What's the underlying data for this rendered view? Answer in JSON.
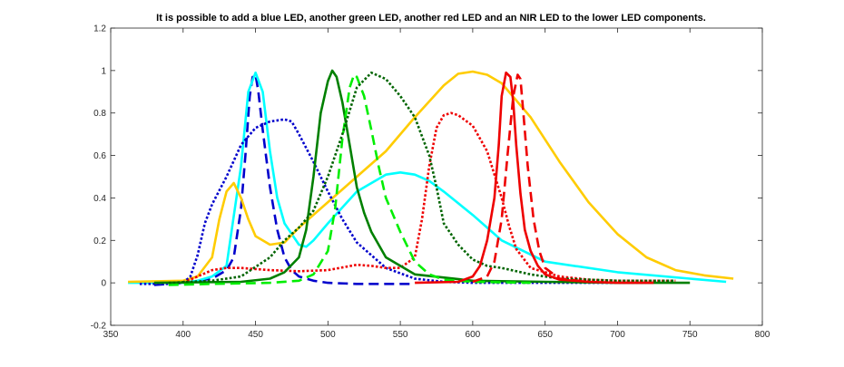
{
  "chart_data": {
    "type": "line",
    "title": "It is possible to add a blue LED, another green LED, another red LED and an NIR LED to the lower LED components.",
    "xlabel": "",
    "ylabel": "",
    "xlim": [
      350,
      800
    ],
    "ylim": [
      -0.2,
      1.2
    ],
    "xticks": [
      350,
      400,
      450,
      500,
      550,
      600,
      650,
      700,
      750,
      800
    ],
    "xtick_labels": [
      "350",
      "400",
      "450",
      "500",
      "550",
      "600",
      "650",
      "700",
      "750",
      "800"
    ],
    "yticks": [
      -0.2,
      0,
      0.2,
      0.4,
      0.6,
      0.8,
      1,
      1.2
    ],
    "ytick_labels": [
      "-0.2",
      "0",
      "0.2",
      "0.4",
      "0.6",
      "0.8",
      "1",
      "1.2"
    ],
    "grid": false,
    "legend": "none",
    "series": [
      {
        "color": "#0000cc",
        "style": "dashed",
        "x": [
          380,
          400,
          410,
          420,
          430,
          435,
          440,
          443,
          446,
          448,
          450,
          452,
          455,
          460,
          465,
          470,
          475,
          480,
          490,
          500,
          520,
          540,
          560
        ],
        "y": [
          -0.01,
          0,
          0.01,
          0.02,
          0.06,
          0.12,
          0.35,
          0.6,
          0.88,
          0.97,
          0.98,
          0.9,
          0.72,
          0.45,
          0.25,
          0.12,
          0.06,
          0.03,
          0.01,
          0,
          -0.005,
          -0.005,
          -0.005
        ]
      },
      {
        "color": "#00ffff",
        "style": "solid",
        "x": [
          362,
          400,
          410,
          420,
          430,
          440,
          445,
          450,
          455,
          460,
          465,
          470,
          480,
          485,
          490,
          500,
          520,
          540,
          550,
          560,
          570,
          580,
          600,
          620,
          650,
          700,
          750,
          775
        ],
        "y": [
          0,
          0,
          0.01,
          0.03,
          0.08,
          0.55,
          0.9,
          0.99,
          0.9,
          0.62,
          0.4,
          0.28,
          0.18,
          0.17,
          0.2,
          0.28,
          0.43,
          0.51,
          0.52,
          0.51,
          0.48,
          0.43,
          0.32,
          0.2,
          0.1,
          0.05,
          0.02,
          0.005
        ]
      },
      {
        "color": "#ffcc00",
        "style": "solid",
        "x": [
          362,
          400,
          410,
          420,
          425,
          430,
          435,
          440,
          445,
          450,
          460,
          470,
          480,
          500,
          520,
          540,
          560,
          580,
          590,
          600,
          610,
          620,
          640,
          660,
          680,
          700,
          720,
          740,
          760,
          780
        ],
        "y": [
          0.005,
          0.01,
          0.03,
          0.12,
          0.3,
          0.43,
          0.47,
          0.4,
          0.3,
          0.22,
          0.18,
          0.19,
          0.26,
          0.38,
          0.5,
          0.62,
          0.78,
          0.93,
          0.985,
          0.995,
          0.98,
          0.94,
          0.78,
          0.57,
          0.38,
          0.23,
          0.12,
          0.06,
          0.035,
          0.02
        ]
      },
      {
        "color": "#0000cc",
        "style": "dotted",
        "x": [
          370,
          390,
          400,
          405,
          410,
          415,
          420,
          430,
          440,
          450,
          460,
          470,
          475,
          480,
          490,
          500,
          510,
          520,
          540,
          560,
          580,
          600,
          640,
          680,
          720
        ],
        "y": [
          -0.005,
          -0.005,
          0,
          0.03,
          0.13,
          0.28,
          0.37,
          0.5,
          0.65,
          0.73,
          0.76,
          0.77,
          0.76,
          0.7,
          0.57,
          0.43,
          0.3,
          0.19,
          0.07,
          0.02,
          0.005,
          0,
          0,
          0,
          0
        ]
      },
      {
        "color": "#ee0000",
        "style": "dotted",
        "x": [
          400,
          410,
          420,
          430,
          440,
          450,
          460,
          480,
          500,
          520,
          530,
          540,
          550,
          560,
          565,
          570,
          575,
          580,
          585,
          590,
          600,
          610,
          620,
          625,
          630,
          640,
          660,
          680,
          700,
          720,
          740
        ],
        "y": [
          0,
          0.03,
          0.06,
          0.07,
          0.07,
          0.065,
          0.06,
          0.055,
          0.06,
          0.085,
          0.08,
          0.07,
          0.07,
          0.12,
          0.3,
          0.55,
          0.73,
          0.79,
          0.8,
          0.79,
          0.74,
          0.62,
          0.4,
          0.27,
          0.16,
          0.07,
          0.03,
          0.015,
          0.01,
          0.01,
          0.01
        ]
      },
      {
        "color": "#008000",
        "style": "solid",
        "x": [
          380,
          440,
          460,
          470,
          480,
          485,
          490,
          495,
          500,
          503,
          506,
          510,
          515,
          520,
          525,
          530,
          540,
          560,
          600,
          650,
          700,
          750
        ],
        "y": [
          0,
          0.005,
          0.02,
          0.05,
          0.12,
          0.25,
          0.5,
          0.8,
          0.95,
          1.0,
          0.97,
          0.85,
          0.65,
          0.45,
          0.33,
          0.24,
          0.12,
          0.04,
          0.01,
          0.005,
          0,
          0
        ]
      },
      {
        "color": "#00ee00",
        "style": "dashed",
        "x": [
          390,
          420,
          460,
          480,
          490,
          500,
          505,
          510,
          515,
          518,
          520,
          525,
          530,
          535,
          540,
          550,
          560,
          570,
          580,
          600,
          640
        ],
        "y": [
          -0.01,
          -0.005,
          0,
          0.01,
          0.04,
          0.15,
          0.35,
          0.68,
          0.92,
          0.98,
          0.97,
          0.88,
          0.72,
          0.55,
          0.4,
          0.24,
          0.1,
          0.04,
          0.015,
          0.005,
          0
        ]
      },
      {
        "color": "#006400",
        "style": "dotted",
        "x": [
          390,
          420,
          440,
          460,
          470,
          480,
          490,
          500,
          510,
          520,
          530,
          540,
          550,
          560,
          570,
          575,
          580,
          590,
          600,
          610,
          620,
          640,
          660,
          680,
          700,
          720,
          740
        ],
        "y": [
          0,
          0.01,
          0.03,
          0.12,
          0.2,
          0.26,
          0.34,
          0.5,
          0.7,
          0.92,
          0.99,
          0.96,
          0.88,
          0.78,
          0.6,
          0.45,
          0.28,
          0.18,
          0.11,
          0.08,
          0.07,
          0.04,
          0.02,
          0.015,
          0.01,
          0.01,
          0.01
        ]
      },
      {
        "color": "#ee0000",
        "style": "solid",
        "x": [
          560,
          590,
          600,
          605,
          610,
          615,
          618,
          620,
          623,
          626,
          628,
          630,
          633,
          636,
          640,
          645,
          650,
          660,
          680,
          700,
          725
        ],
        "y": [
          0,
          0.005,
          0.03,
          0.08,
          0.2,
          0.4,
          0.65,
          0.88,
          0.99,
          0.97,
          0.85,
          0.65,
          0.42,
          0.25,
          0.15,
          0.08,
          0.04,
          0.015,
          0.005,
          0,
          0
        ]
      },
      {
        "color": "#ee0000",
        "style": "dashed",
        "x": [
          600,
          610,
          615,
          620,
          624,
          628,
          631,
          633,
          635,
          638,
          642,
          646,
          650,
          660,
          680
        ],
        "y": [
          0.005,
          0.03,
          0.1,
          0.3,
          0.6,
          0.88,
          0.98,
          0.96,
          0.8,
          0.55,
          0.3,
          0.15,
          0.07,
          0.02,
          0.005
        ]
      }
    ]
  }
}
